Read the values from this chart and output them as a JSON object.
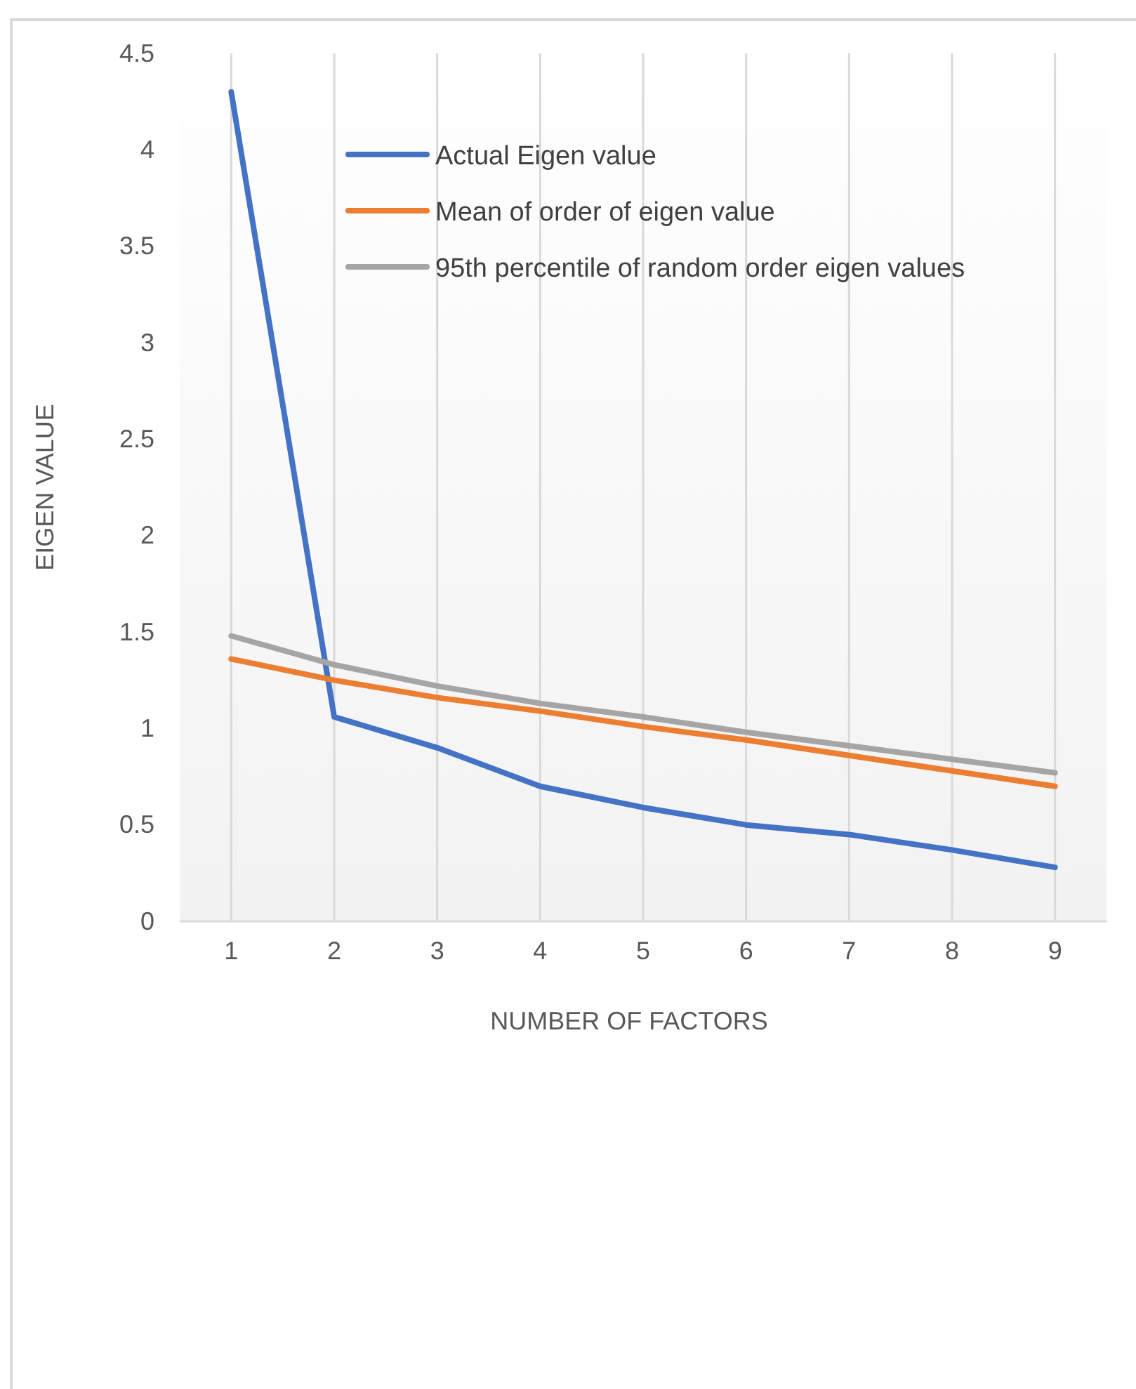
{
  "chart_data": {
    "type": "line",
    "xlabel": "NUMBER OF FACTORS",
    "ylabel": "EIGEN VALUE",
    "categories": [
      "1",
      "2",
      "3",
      "4",
      "5",
      "6",
      "7",
      "8",
      "9"
    ],
    "series": [
      {
        "name": "Actual Eigen value",
        "color": "#4472c4",
        "values": [
          4.3,
          1.06,
          0.9,
          0.7,
          0.59,
          0.5,
          0.45,
          0.37,
          0.28
        ]
      },
      {
        "name": "Mean of order of eigen value",
        "color": "#ed7d31",
        "values": [
          1.36,
          1.25,
          1.16,
          1.09,
          1.01,
          0.94,
          0.86,
          0.78,
          0.7
        ]
      },
      {
        "name": "95th percentile of random order eigen values",
        "color": "#a5a5a5",
        "values": [
          1.48,
          1.33,
          1.22,
          1.13,
          1.06,
          0.98,
          0.91,
          0.84,
          0.77
        ]
      }
    ],
    "ylim": [
      0,
      4.5
    ],
    "yticks": [
      0,
      0.5,
      1,
      1.5,
      2,
      2.5,
      3,
      3.5,
      4,
      4.5
    ],
    "grid": "x",
    "legend": "top right",
    "marker": "none",
    "line_style": "solid"
  }
}
